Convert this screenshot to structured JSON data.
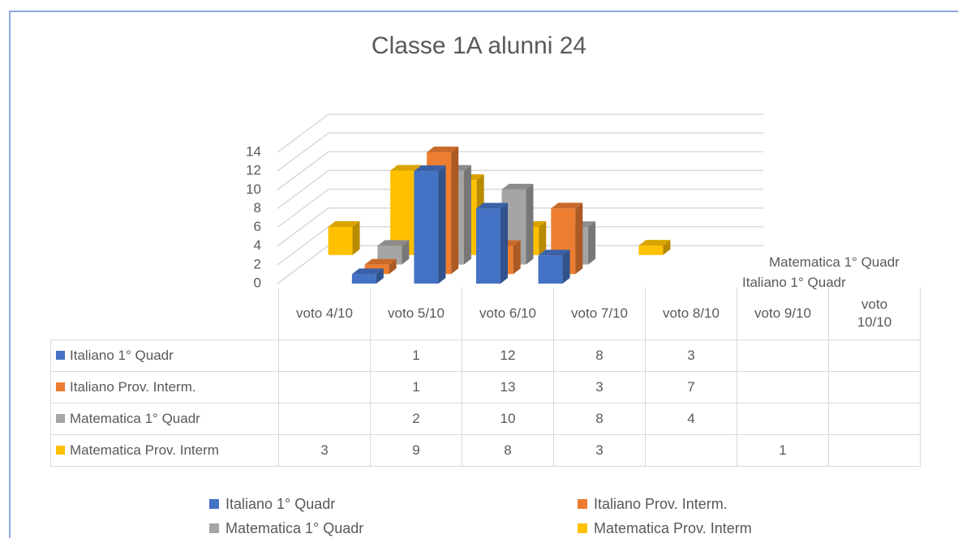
{
  "chart_data": {
    "type": "bar3d",
    "title": "Classe 1A alunni 24",
    "categories": [
      "voto 4/10",
      "voto 5/10",
      "voto 6/10",
      "voto 7/10",
      "voto 8/10",
      "voto 9/10",
      "voto 10/10"
    ],
    "series": [
      {
        "name": "Italiano 1° Quadr",
        "color": "#4472c4",
        "values": [
          null,
          1,
          12,
          8,
          3,
          null,
          null
        ]
      },
      {
        "name": "Italiano Prov. Interm.",
        "color": "#ed7d31",
        "values": [
          null,
          1,
          13,
          3,
          7,
          null,
          null
        ]
      },
      {
        "name": "Matematica 1° Quadr",
        "color": "#a5a5a5",
        "values": [
          null,
          2,
          10,
          8,
          4,
          null,
          null
        ]
      },
      {
        "name": "Matematica Prov. Interm",
        "color": "#ffc000",
        "values": [
          3,
          9,
          8,
          3,
          null,
          1,
          null
        ]
      }
    ],
    "ylim": [
      0,
      14
    ],
    "yticks": [
      0,
      2,
      4,
      6,
      8,
      10,
      12,
      14
    ],
    "grid": true,
    "data_table": true,
    "legend": "bottom"
  }
}
